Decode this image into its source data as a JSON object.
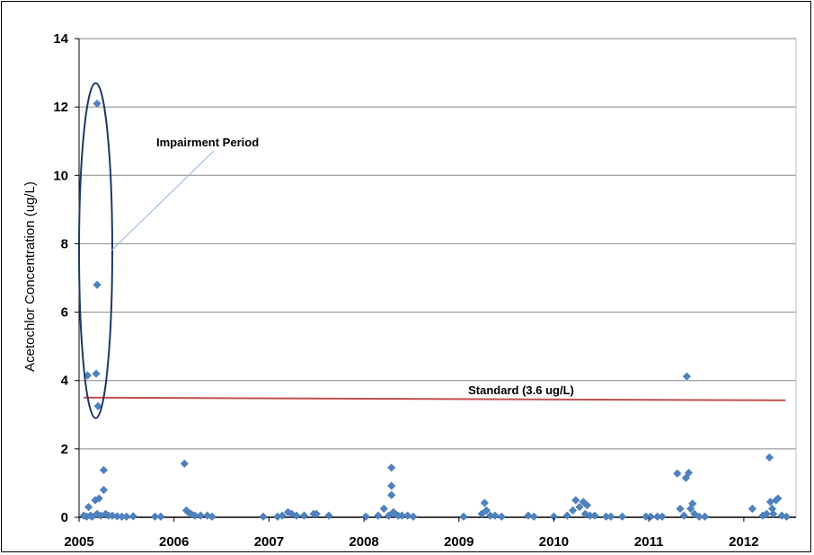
{
  "chart_data": {
    "type": "scatter",
    "title": "",
    "xlabel": "",
    "ylabel": "Acetochlor Concentration (ug/L)",
    "xlim": [
      2005.0,
      2012.55
    ],
    "ylim": [
      0,
      14
    ],
    "x_ticks": [
      "2005",
      "2006",
      "2007",
      "2008",
      "2009",
      "2010",
      "2011",
      "2012"
    ],
    "y_ticks": [
      "0",
      "2",
      "4",
      "6",
      "8",
      "10",
      "12",
      "14"
    ],
    "grid": "horizontal",
    "marker_color": "#4F81BD",
    "series": [
      {
        "marker": "diamond",
        "points": [
          [
            2005.05,
            0.05
          ],
          [
            2005.08,
            0.02
          ],
          [
            2005.1,
            0.3
          ],
          [
            2005.12,
            0.05
          ],
          [
            2005.14,
            0.02
          ],
          [
            2005.17,
            0.5
          ],
          [
            2005.19,
            0.1
          ],
          [
            2005.21,
            0.55
          ],
          [
            2005.23,
            0.05
          ],
          [
            2005.26,
            0.8
          ],
          [
            2005.26,
            1.38
          ],
          [
            2005.28,
            0.1
          ],
          [
            2005.31,
            0.05
          ],
          [
            2005.35,
            0.05
          ],
          [
            2005.4,
            0.03
          ],
          [
            2005.45,
            0.02
          ],
          [
            2005.5,
            0.02
          ],
          [
            2005.57,
            0.03
          ],
          [
            2005.09,
            4.15
          ],
          [
            2005.18,
            4.2
          ],
          [
            2005.19,
            6.8
          ],
          [
            2005.19,
            12.1
          ],
          [
            2005.2,
            3.25
          ],
          [
            2005.8,
            0.02
          ],
          [
            2005.86,
            0.02
          ],
          [
            2006.11,
            1.57
          ],
          [
            2006.13,
            0.2
          ],
          [
            2006.15,
            0.15
          ],
          [
            2006.18,
            0.1
          ],
          [
            2006.22,
            0.05
          ],
          [
            2006.28,
            0.05
          ],
          [
            2006.35,
            0.05
          ],
          [
            2006.4,
            0.02
          ],
          [
            2006.94,
            0.02
          ],
          [
            2007.09,
            0.02
          ],
          [
            2007.14,
            0.05
          ],
          [
            2007.2,
            0.15
          ],
          [
            2007.24,
            0.1
          ],
          [
            2007.29,
            0.05
          ],
          [
            2007.37,
            0.05
          ],
          [
            2007.47,
            0.1
          ],
          [
            2007.5,
            0.1
          ],
          [
            2007.63,
            0.05
          ],
          [
            2008.02,
            0.02
          ],
          [
            2008.15,
            0.05
          ],
          [
            2008.21,
            0.25
          ],
          [
            2008.26,
            0.05
          ],
          [
            2008.29,
            1.45
          ],
          [
            2008.29,
            0.92
          ],
          [
            2008.29,
            0.65
          ],
          [
            2008.31,
            0.15
          ],
          [
            2008.33,
            0.1
          ],
          [
            2008.36,
            0.05
          ],
          [
            2008.4,
            0.05
          ],
          [
            2008.46,
            0.05
          ],
          [
            2008.52,
            0.02
          ],
          [
            2009.05,
            0.02
          ],
          [
            2009.24,
            0.1
          ],
          [
            2009.27,
            0.42
          ],
          [
            2009.29,
            0.2
          ],
          [
            2009.33,
            0.05
          ],
          [
            2009.38,
            0.05
          ],
          [
            2009.45,
            0.02
          ],
          [
            2009.73,
            0.05
          ],
          [
            2009.79,
            0.02
          ],
          [
            2010.0,
            0.02
          ],
          [
            2010.14,
            0.05
          ],
          [
            2010.2,
            0.2
          ],
          [
            2010.23,
            0.5
          ],
          [
            2010.27,
            0.3
          ],
          [
            2010.31,
            0.45
          ],
          [
            2010.33,
            0.1
          ],
          [
            2010.35,
            0.35
          ],
          [
            2010.38,
            0.05
          ],
          [
            2010.43,
            0.05
          ],
          [
            2010.55,
            0.02
          ],
          [
            2010.6,
            0.02
          ],
          [
            2010.72,
            0.02
          ],
          [
            2010.97,
            0.02
          ],
          [
            2011.02,
            0.02
          ],
          [
            2011.09,
            0.02
          ],
          [
            2011.14,
            0.02
          ],
          [
            2011.3,
            1.28
          ],
          [
            2011.33,
            0.25
          ],
          [
            2011.37,
            0.05
          ],
          [
            2011.39,
            1.15
          ],
          [
            2011.4,
            4.12
          ],
          [
            2011.42,
            1.3
          ],
          [
            2011.44,
            0.25
          ],
          [
            2011.46,
            0.4
          ],
          [
            2011.48,
            0.1
          ],
          [
            2011.53,
            0.02
          ],
          [
            2011.59,
            0.02
          ],
          [
            2012.09,
            0.25
          ],
          [
            2012.2,
            0.05
          ],
          [
            2012.24,
            0.1
          ],
          [
            2012.27,
            1.75
          ],
          [
            2012.28,
            0.45
          ],
          [
            2012.3,
            0.25
          ],
          [
            2012.31,
            0.1
          ],
          [
            2012.34,
            0.5
          ],
          [
            2012.36,
            0.55
          ],
          [
            2012.4,
            0.05
          ],
          [
            2012.45,
            0.02
          ]
        ]
      }
    ],
    "reference_line": {
      "label": "Standard (3.6 ug/L)",
      "x_range": [
        2005.05,
        2012.44
      ],
      "y_start": 3.5,
      "y_end": 3.42,
      "color": "#C0504D"
    },
    "annotation": {
      "label": "Impairment Period",
      "ellipse_x": [
        2005.0,
        2005.35
      ],
      "ellipse_y": [
        2.9,
        12.7
      ],
      "color": "#1F3864"
    }
  }
}
